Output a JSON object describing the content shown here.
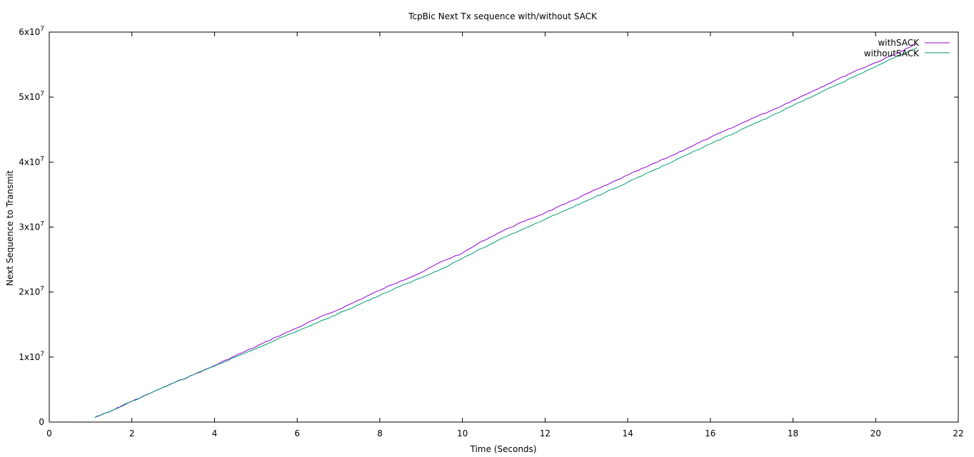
{
  "chart_data": {
    "type": "line",
    "title": "TcpBic Next Tx sequence with/without SACK",
    "xlabel": "Time (Seconds)",
    "ylabel": "Next Sequence to Transmit",
    "xlim": [
      0,
      22
    ],
    "ylim": [
      0,
      60000000
    ],
    "x_ticks": [
      {
        "value": 0,
        "label": "0"
      },
      {
        "value": 2,
        "label": "2"
      },
      {
        "value": 4,
        "label": "4"
      },
      {
        "value": 6,
        "label": "6"
      },
      {
        "value": 8,
        "label": "8"
      },
      {
        "value": 10,
        "label": "10"
      },
      {
        "value": 12,
        "label": "12"
      },
      {
        "value": 14,
        "label": "14"
      },
      {
        "value": 16,
        "label": "16"
      },
      {
        "value": 18,
        "label": "18"
      },
      {
        "value": 20,
        "label": "20"
      },
      {
        "value": 22,
        "label": "22"
      }
    ],
    "y_ticks": [
      {
        "value": 0,
        "mantissa": "0",
        "exponent": ""
      },
      {
        "value": 10000000,
        "mantissa": "1x10",
        "exponent": "7"
      },
      {
        "value": 20000000,
        "mantissa": "2x10",
        "exponent": "7"
      },
      {
        "value": 30000000,
        "mantissa": "3x10",
        "exponent": "7"
      },
      {
        "value": 40000000,
        "mantissa": "4x10",
        "exponent": "7"
      },
      {
        "value": 50000000,
        "mantissa": "5x10",
        "exponent": "7"
      },
      {
        "value": 60000000,
        "mantissa": "6x10",
        "exponent": "7"
      }
    ],
    "grid": false,
    "legend_position": "top-right",
    "series": [
      {
        "name": "withSACK",
        "color": "#9400d3",
        "x": [
          1.1,
          1.5,
          2.0,
          2.5,
          3.0,
          3.5,
          4.0,
          4.5,
          5.0,
          5.5,
          6.0,
          6.5,
          7.0,
          7.5,
          8.0,
          8.5,
          9.0,
          9.5,
          10.0,
          10.5,
          11.0,
          11.5,
          12.0,
          12.5,
          13.0,
          13.5,
          14.0,
          14.5,
          15.0,
          15.5,
          16.0,
          16.5,
          17.0,
          17.5,
          18.0,
          18.5,
          19.0,
          19.5,
          20.0,
          20.5,
          21.0
        ],
        "y": [
          700000,
          1700000,
          3200000,
          4600000,
          6000000,
          7300000,
          8700000,
          10200000,
          11600000,
          13100000,
          14500000,
          16000000,
          17300000,
          18800000,
          20300000,
          21700000,
          23000000,
          24700000,
          26000000,
          27900000,
          29500000,
          30900000,
          32200000,
          33600000,
          35100000,
          36500000,
          38000000,
          39400000,
          40800000,
          42300000,
          43800000,
          45200000,
          46700000,
          48000000,
          49500000,
          51000000,
          52500000,
          54000000,
          55300000,
          56700000,
          58200000
        ]
      },
      {
        "name": "withoutSACK",
        "color": "#009e73",
        "x": [
          1.1,
          1.5,
          2.0,
          2.5,
          3.0,
          3.5,
          4.0,
          4.5,
          5.0,
          5.5,
          6.0,
          6.5,
          7.0,
          7.5,
          8.0,
          8.5,
          9.0,
          9.5,
          10.0,
          10.5,
          11.0,
          11.5,
          12.0,
          12.5,
          13.0,
          13.5,
          14.0,
          14.5,
          15.0,
          15.5,
          16.0,
          16.5,
          17.0,
          17.5,
          18.0,
          18.5,
          19.0,
          19.5,
          20.0,
          20.5,
          21.0
        ],
        "y": [
          700000,
          1700000,
          3200000,
          4600000,
          6000000,
          7300000,
          8600000,
          10000000,
          11300000,
          12700000,
          14000000,
          15300000,
          16700000,
          18100000,
          19500000,
          20900000,
          22200000,
          23600000,
          25200000,
          26800000,
          28400000,
          29800000,
          31200000,
          32600000,
          34000000,
          35500000,
          36900000,
          38400000,
          39800000,
          41300000,
          42800000,
          44200000,
          45700000,
          47200000,
          48700000,
          50200000,
          51700000,
          53200000,
          54700000,
          56200000,
          57600000
        ]
      }
    ]
  }
}
